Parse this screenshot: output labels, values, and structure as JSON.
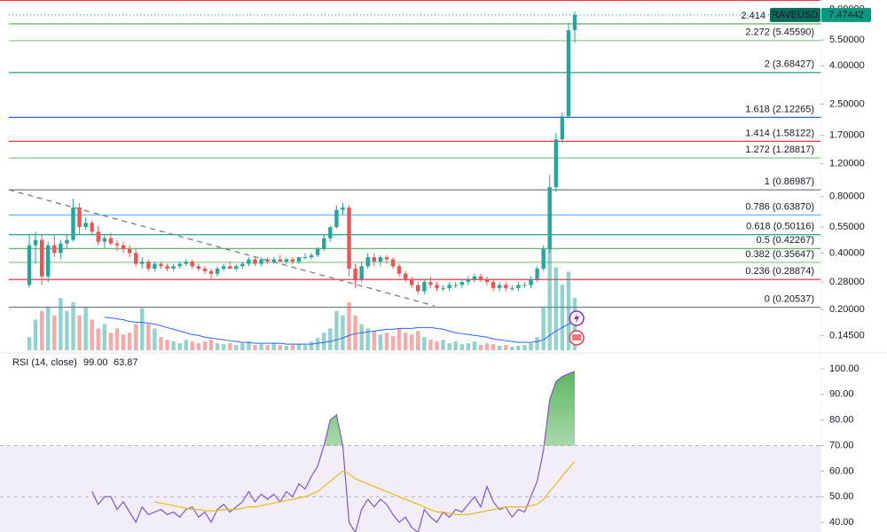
{
  "chart_data": {
    "type": "candlestick",
    "symbol": "RAVEUSD",
    "last_price": {
      "value": 7.47442,
      "label": "7.47442"
    },
    "log_scale": true,
    "ylim": [
      0.121,
      8.99
    ],
    "yticks": [
      {
        "value": 8,
        "label": "8.00000"
      },
      {
        "value": 5.5,
        "label": "5.50000"
      },
      {
        "value": 4,
        "label": "4.00000"
      },
      {
        "value": 2.5,
        "label": "2.50000"
      },
      {
        "value": 1.7,
        "label": "1.70000"
      },
      {
        "value": 1.2,
        "label": "1.20000"
      },
      {
        "value": 0.8,
        "label": "0.80000"
      },
      {
        "value": 0.55,
        "label": "0.55000"
      },
      {
        "value": 0.4,
        "label": "0.40000"
      },
      {
        "value": 0.28,
        "label": "0.28000"
      },
      {
        "value": 0.2,
        "label": "0.20000"
      },
      {
        "value": 0.145,
        "label": "0.14500"
      }
    ],
    "up_color": "#26a69a",
    "down_color": "#ef5350",
    "ohlc": [
      [
        0.27,
        0.5,
        0.26,
        0.44
      ],
      [
        0.44,
        0.52,
        0.35,
        0.47
      ],
      [
        0.47,
        0.5,
        0.27,
        0.3
      ],
      [
        0.3,
        0.46,
        0.28,
        0.44
      ],
      [
        0.44,
        0.5,
        0.38,
        0.4
      ],
      [
        0.4,
        0.47,
        0.37,
        0.45
      ],
      [
        0.45,
        0.5,
        0.42,
        0.47
      ],
      [
        0.47,
        0.78,
        0.46,
        0.7
      ],
      [
        0.7,
        0.74,
        0.5,
        0.55
      ],
      [
        0.55,
        0.62,
        0.53,
        0.58
      ],
      [
        0.58,
        0.6,
        0.5,
        0.52
      ],
      [
        0.52,
        0.56,
        0.44,
        0.46
      ],
      [
        0.46,
        0.5,
        0.42,
        0.48
      ],
      [
        0.48,
        0.51,
        0.44,
        0.45
      ],
      [
        0.45,
        0.47,
        0.41,
        0.44
      ],
      [
        0.44,
        0.46,
        0.4,
        0.42
      ],
      [
        0.42,
        0.44,
        0.38,
        0.4
      ],
      [
        0.4,
        0.42,
        0.34,
        0.35
      ],
      [
        0.35,
        0.38,
        0.33,
        0.36
      ],
      [
        0.36,
        0.37,
        0.32,
        0.33
      ],
      [
        0.33,
        0.36,
        0.32,
        0.35
      ],
      [
        0.35,
        0.36,
        0.33,
        0.34
      ],
      [
        0.34,
        0.35,
        0.32,
        0.33
      ],
      [
        0.33,
        0.35,
        0.32,
        0.34
      ],
      [
        0.34,
        0.36,
        0.33,
        0.35
      ],
      [
        0.35,
        0.37,
        0.34,
        0.36
      ],
      [
        0.36,
        0.37,
        0.33,
        0.34
      ],
      [
        0.34,
        0.35,
        0.32,
        0.33
      ],
      [
        0.33,
        0.34,
        0.31,
        0.32
      ],
      [
        0.32,
        0.33,
        0.29,
        0.31
      ],
      [
        0.31,
        0.34,
        0.3,
        0.33
      ],
      [
        0.33,
        0.35,
        0.32,
        0.34
      ],
      [
        0.34,
        0.36,
        0.33,
        0.33
      ],
      [
        0.33,
        0.35,
        0.32,
        0.34
      ],
      [
        0.34,
        0.36,
        0.33,
        0.35
      ],
      [
        0.35,
        0.38,
        0.34,
        0.37
      ],
      [
        0.37,
        0.38,
        0.34,
        0.35
      ],
      [
        0.35,
        0.38,
        0.34,
        0.37
      ],
      [
        0.37,
        0.38,
        0.35,
        0.36
      ],
      [
        0.36,
        0.38,
        0.35,
        0.37
      ],
      [
        0.37,
        0.39,
        0.36,
        0.36
      ],
      [
        0.36,
        0.38,
        0.35,
        0.37
      ],
      [
        0.37,
        0.38,
        0.35,
        0.36
      ],
      [
        0.36,
        0.38,
        0.35,
        0.38
      ],
      [
        0.38,
        0.4,
        0.37,
        0.38
      ],
      [
        0.38,
        0.4,
        0.37,
        0.39
      ],
      [
        0.39,
        0.43,
        0.38,
        0.42
      ],
      [
        0.42,
        0.5,
        0.41,
        0.48
      ],
      [
        0.48,
        0.56,
        0.46,
        0.55
      ],
      [
        0.55,
        0.72,
        0.54,
        0.68
      ],
      [
        0.68,
        0.74,
        0.64,
        0.7
      ],
      [
        0.7,
        0.72,
        0.3,
        0.33
      ],
      [
        0.33,
        0.35,
        0.26,
        0.29
      ],
      [
        0.29,
        0.36,
        0.28,
        0.34
      ],
      [
        0.34,
        0.4,
        0.33,
        0.38
      ],
      [
        0.38,
        0.4,
        0.34,
        0.36
      ],
      [
        0.36,
        0.39,
        0.34,
        0.38
      ],
      [
        0.38,
        0.39,
        0.35,
        0.37
      ],
      [
        0.37,
        0.38,
        0.33,
        0.34
      ],
      [
        0.34,
        0.35,
        0.3,
        0.31
      ],
      [
        0.31,
        0.32,
        0.28,
        0.29
      ],
      [
        0.29,
        0.3,
        0.26,
        0.27
      ],
      [
        0.27,
        0.28,
        0.24,
        0.25
      ],
      [
        0.25,
        0.29,
        0.24,
        0.28
      ],
      [
        0.28,
        0.3,
        0.26,
        0.27
      ],
      [
        0.27,
        0.28,
        0.25,
        0.26
      ],
      [
        0.26,
        0.27,
        0.25,
        0.26
      ],
      [
        0.26,
        0.28,
        0.25,
        0.27
      ],
      [
        0.27,
        0.28,
        0.26,
        0.27
      ],
      [
        0.27,
        0.29,
        0.26,
        0.28
      ],
      [
        0.28,
        0.3,
        0.27,
        0.29
      ],
      [
        0.29,
        0.31,
        0.28,
        0.3
      ],
      [
        0.3,
        0.31,
        0.28,
        0.29
      ],
      [
        0.29,
        0.3,
        0.27,
        0.28
      ],
      [
        0.28,
        0.29,
        0.25,
        0.26
      ],
      [
        0.26,
        0.28,
        0.25,
        0.27
      ],
      [
        0.27,
        0.28,
        0.25,
        0.26
      ],
      [
        0.26,
        0.27,
        0.25,
        0.26
      ],
      [
        0.26,
        0.28,
        0.25,
        0.27
      ],
      [
        0.27,
        0.28,
        0.26,
        0.27
      ],
      [
        0.27,
        0.3,
        0.26,
        0.29
      ],
      [
        0.29,
        0.34,
        0.28,
        0.33
      ],
      [
        0.33,
        0.44,
        0.32,
        0.42
      ],
      [
        0.42,
        1.05,
        0.4,
        0.9
      ],
      [
        0.9,
        1.75,
        0.85,
        1.62
      ],
      [
        1.62,
        2.25,
        1.55,
        2.15
      ],
      [
        2.15,
        6.8,
        2.1,
        6.2
      ],
      [
        6.2,
        7.8,
        5.3,
        7.47442
      ]
    ],
    "volume": [
      15,
      35,
      45,
      50,
      40,
      60,
      45,
      55,
      40,
      50,
      35,
      25,
      30,
      20,
      25,
      18,
      20,
      30,
      48,
      30,
      25,
      15,
      12,
      10,
      8,
      12,
      10,
      8,
      10,
      12,
      8,
      7,
      8,
      6,
      8,
      10,
      6,
      7,
      6,
      8,
      6,
      5,
      6,
      7,
      6,
      10,
      14,
      20,
      25,
      45,
      40,
      55,
      40,
      30,
      25,
      22,
      18,
      20,
      16,
      25,
      20,
      18,
      22,
      15,
      12,
      10,
      12,
      8,
      10,
      7,
      8,
      10,
      6,
      8,
      7,
      5,
      6,
      4,
      5,
      6,
      8,
      15,
      50,
      120,
      95,
      75,
      90,
      60
    ],
    "volume_ma": {
      "color": "#2962ff",
      "values": [
        null,
        null,
        null,
        null,
        null,
        null,
        null,
        null,
        null,
        null,
        null,
        null,
        38,
        37,
        36,
        35,
        33,
        32,
        32,
        31,
        30,
        28,
        26,
        24,
        22,
        20,
        18,
        17,
        15,
        14,
        13,
        12,
        11,
        10,
        9,
        9,
        8,
        8,
        8,
        8,
        8,
        7,
        7,
        7,
        7,
        7,
        8,
        9,
        10,
        12,
        14,
        17,
        19,
        20,
        21,
        22,
        23,
        24,
        24,
        25,
        25,
        25,
        26,
        26,
        26,
        25,
        24,
        22,
        20,
        19,
        18,
        17,
        16,
        15,
        13,
        12,
        11,
        10,
        9,
        9,
        9,
        10,
        12,
        17,
        22,
        26,
        30,
        33
      ]
    },
    "fib": [
      {
        "label": "2.414",
        "price": 6.7,
        "color": "#4caf50"
      },
      {
        "label": "2.272 (5.45590)",
        "price": 5.4559,
        "color": "#81c784"
      },
      {
        "label": "2 (3.68427)",
        "price": 3.68427,
        "color": "#089981"
      },
      {
        "label": "1.618 (2.12265)",
        "price": 2.12265,
        "color": "#2962ff"
      },
      {
        "label": "1.414 (1.58122)",
        "price": 1.58122,
        "color": "#f23645"
      },
      {
        "label": "1.272 (1.28817)",
        "price": 1.28817,
        "color": "#81c784"
      },
      {
        "label": "1 (0.86987)",
        "price": 0.86987,
        "color": "#787b86"
      },
      {
        "label": "0.786 (0.63870)",
        "price": 0.6387,
        "color": "#64b5f6"
      },
      {
        "label": "0.618 (0.50116)",
        "price": 0.50116,
        "color": "#089981"
      },
      {
        "label": "0.5 (0.42267)",
        "price": 0.42267,
        "color": "#4caf50"
      },
      {
        "label": "0.382 (0.35647)",
        "price": 0.35647,
        "color": "#81c784"
      },
      {
        "label": "0.236 (0.28874)",
        "price": 0.28874,
        "color": "#f23645"
      },
      {
        "label": "0 (0.20537)",
        "price": 0.20537,
        "color": "#787b86"
      }
    ],
    "rsi": {
      "title": "RSI (14, close)",
      "ylim": [
        36.2,
        103.8
      ],
      "yticks": [
        {
          "value": 100,
          "label": "100.00"
        },
        {
          "value": 90,
          "label": "90.00"
        },
        {
          "value": 80,
          "label": "80.00"
        },
        {
          "value": 70,
          "label": "70.00"
        },
        {
          "value": 60,
          "label": "60.00"
        },
        {
          "value": 50,
          "label": "50.00"
        },
        {
          "value": 40,
          "label": "40.00"
        }
      ],
      "band": [
        30,
        70
      ],
      "levels": [
        70,
        50
      ],
      "series": [
        {
          "color": "#7e57c2",
          "last_label": "99.00",
          "values": [
            null,
            null,
            null,
            null,
            null,
            null,
            null,
            null,
            null,
            null,
            52,
            47,
            50,
            50,
            45,
            48,
            44,
            40,
            46,
            43,
            44,
            45,
            43,
            44,
            42,
            45,
            46,
            42,
            44,
            40,
            45,
            47,
            44,
            46,
            48,
            52,
            48,
            51,
            49,
            51,
            48,
            52,
            50,
            55,
            53,
            58,
            62,
            70,
            80,
            82,
            70,
            40,
            36,
            45,
            49,
            46,
            49,
            47,
            43,
            40,
            42,
            38,
            36,
            45,
            42,
            40,
            44,
            42,
            45,
            44,
            47,
            50,
            46,
            54,
            48,
            45,
            46,
            42,
            45,
            44,
            50,
            56,
            68,
            88,
            95,
            97,
            98,
            99
          ]
        },
        {
          "color": "#e9b91c",
          "last_label": "63.87",
          "values": [
            null,
            null,
            null,
            null,
            null,
            null,
            null,
            null,
            null,
            null,
            null,
            null,
            null,
            null,
            null,
            null,
            null,
            null,
            null,
            null,
            48,
            47.5,
            47,
            46.5,
            46,
            45.5,
            45,
            45,
            44.5,
            44.5,
            44.5,
            45,
            45,
            45,
            45.5,
            46,
            46,
            46.5,
            47,
            47.5,
            48,
            48.5,
            49,
            49.5,
            50,
            51,
            52,
            54,
            56,
            58,
            60,
            59,
            57,
            56,
            55,
            54,
            53,
            52,
            51,
            50,
            49,
            48,
            47,
            46,
            45,
            44,
            44,
            43.5,
            43,
            43,
            43,
            43.5,
            44,
            44.5,
            45,
            45.5,
            46,
            46,
            46,
            46,
            46.5,
            47,
            49,
            52,
            55,
            58,
            61,
            63.87
          ]
        }
      ]
    }
  }
}
